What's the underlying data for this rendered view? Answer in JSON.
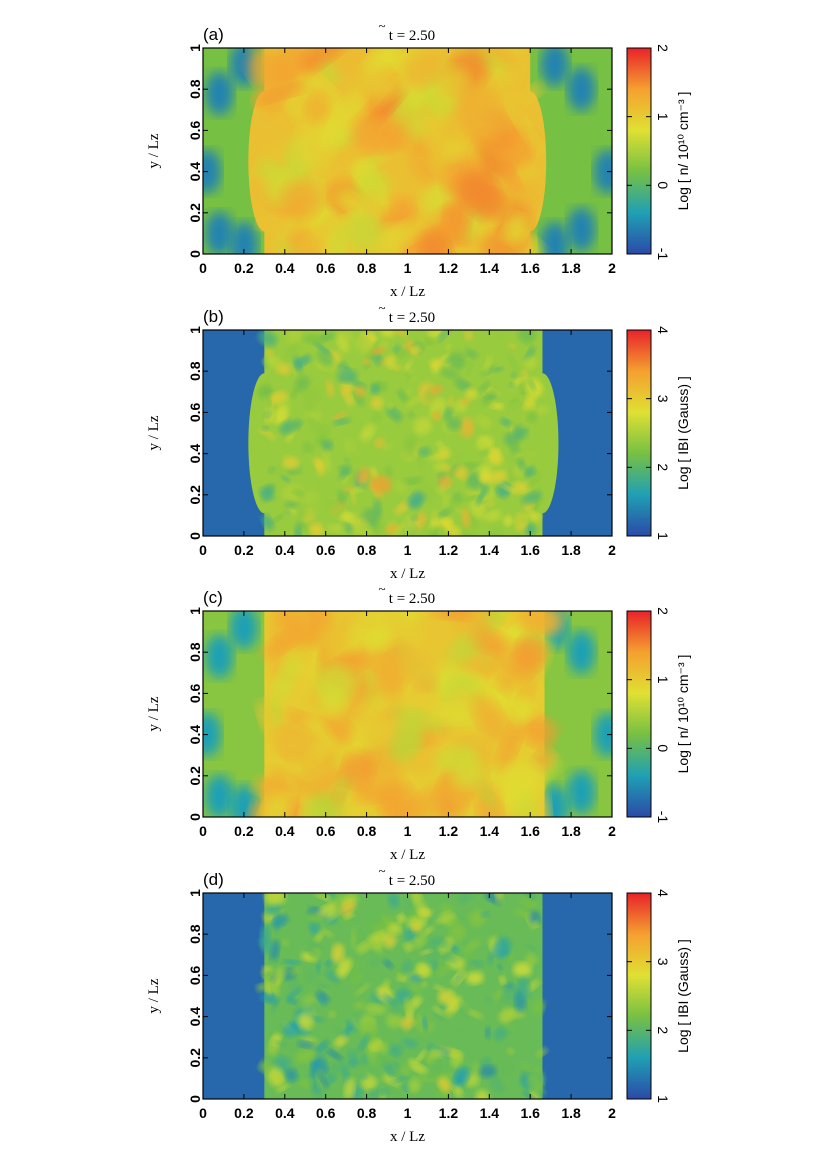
{
  "panels": [
    {
      "id": "a",
      "label": "(a)",
      "time_label": "t = 2.50",
      "time_symbol": "~",
      "xlabel": "x / Lz",
      "ylabel": "y / Lz",
      "colorbar_label": "Log [ n/ 10¹⁰ cm⁻³ ]",
      "colorbar_ticks": [
        "-1",
        "0",
        "1",
        "2"
      ],
      "xticks": [
        "0",
        "0.2",
        "0.4",
        "0.6",
        "0.8",
        "1",
        "1.2",
        "1.4",
        "1.6",
        "1.8",
        "2"
      ],
      "yticks": [
        "0",
        "0.2",
        "0.4",
        "0.6",
        "0.8",
        "1"
      ]
    },
    {
      "id": "b",
      "label": "(b)",
      "time_label": "t = 2.50",
      "time_symbol": "~",
      "xlabel": "x / Lz",
      "ylabel": "y / Lz",
      "colorbar_label": "Log [ IBI (Gauss) ]",
      "colorbar_ticks": [
        "1",
        "2",
        "3",
        "4"
      ],
      "xticks": [
        "0",
        "0.2",
        "0.4",
        "0.6",
        "0.8",
        "1",
        "1.2",
        "1.4",
        "1.6",
        "1.8",
        "2"
      ],
      "yticks": [
        "0",
        "0.2",
        "0.4",
        "0.6",
        "0.8",
        "1"
      ]
    },
    {
      "id": "c",
      "label": "(c)",
      "time_label": "t = 2.50",
      "time_symbol": "~",
      "xlabel": "x / Lz",
      "ylabel": "y / Lz",
      "colorbar_label": "Log [ n/ 10¹⁰ cm⁻³ ]",
      "colorbar_ticks": [
        "-1",
        "0",
        "1",
        "2"
      ],
      "xticks": [
        "0",
        "0.2",
        "0.4",
        "0.6",
        "0.8",
        "1",
        "1.2",
        "1.4",
        "1.6",
        "1.8",
        "2"
      ],
      "yticks": [
        "0",
        "0.2",
        "0.4",
        "0.6",
        "0.8",
        "1"
      ]
    },
    {
      "id": "d",
      "label": "(d)",
      "time_label": "t = 2.50",
      "time_symbol": "~",
      "xlabel": "x / Lz",
      "ylabel": "y / Lz",
      "colorbar_label": "Log [ IBI (Gauss) ]",
      "colorbar_ticks": [
        "1",
        "2",
        "3",
        "4"
      ],
      "xticks": [
        "0",
        "0.2",
        "0.4",
        "0.6",
        "0.8",
        "1",
        "1.2",
        "1.4",
        "1.6",
        "1.8",
        "2"
      ],
      "yticks": [
        "0",
        "0.2",
        "0.4",
        "0.6",
        "0.8",
        "1"
      ]
    }
  ],
  "chart_data": [
    {
      "type": "heatmap",
      "panel": "(a)",
      "quantity": "Log [ n/ 10¹⁰ cm⁻³ ]",
      "xlim": [
        0,
        2
      ],
      "ylim": [
        0,
        1
      ],
      "clim": [
        -1,
        2
      ],
      "colormap": [
        "#2b4aa8",
        "#1fa0b4",
        "#76c043",
        "#dfe033",
        "#f5a030",
        "#e8222a"
      ],
      "region_values": {
        "outer_left_x_lt_0.3": 0.2,
        "inner_0.3_to_1.6": 1.1,
        "outer_right_x_gt_1.6": 0.2,
        "outer_blue_spots": -0.6
      }
    },
    {
      "type": "heatmap",
      "panel": "(b)",
      "quantity": "Log [ IBI (Gauss) ]",
      "xlim": [
        0,
        2
      ],
      "ylim": [
        0,
        1
      ],
      "clim": [
        1,
        4
      ],
      "colormap": [
        "#2b4aa8",
        "#1fa0b4",
        "#76c043",
        "#dfe033",
        "#f5a030",
        "#e8222a"
      ],
      "region_values": {
        "outer": 1.2,
        "inner_turbulent": 2.4
      }
    },
    {
      "type": "heatmap",
      "panel": "(c)",
      "quantity": "Log [ n/ 10¹⁰ cm⁻³ ]",
      "xlim": [
        0,
        2
      ],
      "ylim": [
        0,
        1
      ],
      "clim": [
        -1,
        2
      ],
      "colormap": [
        "#2b4aa8",
        "#1fa0b4",
        "#76c043",
        "#dfe033",
        "#f5a030",
        "#e8222a"
      ],
      "region_values": {
        "outer_left_x_lt_0.3": 0.3,
        "inner_0.3_to_1.67": 1.0,
        "outer_right_x_gt_1.67": 0.3
      }
    },
    {
      "type": "heatmap",
      "panel": "(d)",
      "quantity": "Log [ IBI (Gauss) ]",
      "xlim": [
        0,
        2
      ],
      "ylim": [
        0,
        1
      ],
      "clim": [
        1,
        4
      ],
      "colormap": [
        "#2b4aa8",
        "#1fa0b4",
        "#76c043",
        "#dfe033",
        "#f5a030",
        "#e8222a"
      ],
      "region_values": {
        "outer": 1.2,
        "inner_turbulent": 2.1
      }
    }
  ]
}
